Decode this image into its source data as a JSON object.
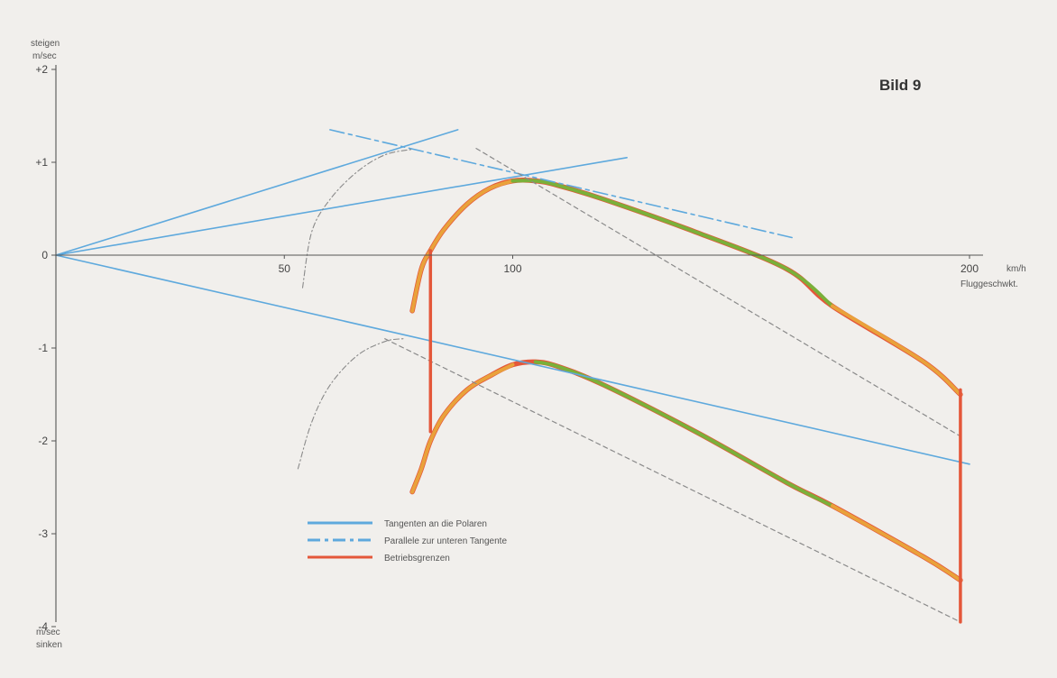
{
  "figure_label": "Bild 9",
  "y_axis": {
    "top_label_1": "steigen",
    "top_label_2": "m/sec",
    "bottom_label_1": "m/sec",
    "bottom_label_2": "sinken"
  },
  "x_axis": {
    "unit_label": "km/h",
    "name_label": "Fluggeschwkt."
  },
  "legend": {
    "tangent_label": "Tangenten an die Polaren",
    "parallel_label": "Parallele zur unteren Tangente",
    "limits_label": "Betriebsgrenzen"
  },
  "colors": {
    "background": "#f1efec",
    "axis": "#555555",
    "tangent": "#5ea9dd",
    "limit": "#e4573a",
    "orange": "#e9a23b",
    "green": "#7ab03a",
    "dashed": "#8a8a8a"
  },
  "chart_data": {
    "type": "line",
    "xlim": [
      0,
      200
    ],
    "ylim": [
      -4,
      2
    ],
    "x_ticks": [
      {
        "value": 50,
        "label": "50"
      },
      {
        "value": 100,
        "label": "100"
      },
      {
        "value": 200,
        "label": "200"
      }
    ],
    "y_ticks": [
      {
        "value": 2,
        "label": "+2"
      },
      {
        "value": 1,
        "label": "+1"
      },
      {
        "value": 0,
        "label": "0"
      },
      {
        "value": -1,
        "label": "-1"
      },
      {
        "value": -2,
        "label": "-2"
      },
      {
        "value": -3,
        "label": "-3"
      },
      {
        "value": -4,
        "label": "-4"
      }
    ],
    "grid": false,
    "legend_position": "bottom-center",
    "series": [
      {
        "role": "upper-polar",
        "points": [
          [
            78,
            -0.6
          ],
          [
            80,
            -0.15
          ],
          [
            82,
            0.05
          ],
          [
            85,
            0.28
          ],
          [
            90,
            0.55
          ],
          [
            95,
            0.72
          ],
          [
            100,
            0.8
          ],
          [
            105,
            0.8
          ],
          [
            110,
            0.75
          ],
          [
            120,
            0.6
          ],
          [
            140,
            0.25
          ],
          [
            160,
            -0.15
          ],
          [
            170,
            -0.55
          ],
          [
            190,
            -1.15
          ],
          [
            198,
            -1.5
          ]
        ],
        "segments": [
          {
            "color": "orange",
            "x_range": [
              78,
              100
            ]
          },
          {
            "color": "green",
            "x_range": [
              100,
              170
            ]
          },
          {
            "color": "orange",
            "x_range": [
              170,
              198
            ]
          }
        ]
      },
      {
        "role": "lower-polar",
        "points": [
          [
            78,
            -2.55
          ],
          [
            80,
            -2.3
          ],
          [
            82,
            -2.0
          ],
          [
            85,
            -1.72
          ],
          [
            90,
            -1.45
          ],
          [
            95,
            -1.3
          ],
          [
            100,
            -1.18
          ],
          [
            105,
            -1.15
          ],
          [
            110,
            -1.2
          ],
          [
            120,
            -1.4
          ],
          [
            140,
            -1.9
          ],
          [
            160,
            -2.45
          ],
          [
            170,
            -2.7
          ],
          [
            190,
            -3.25
          ],
          [
            198,
            -3.5
          ]
        ],
        "segments": [
          {
            "color": "orange",
            "x_range": [
              78,
              100
            ]
          },
          {
            "color": "green",
            "x_range": [
              105,
              170
            ]
          },
          {
            "color": "orange",
            "x_range": [
              170,
              198
            ]
          }
        ]
      },
      {
        "role": "tangent-upper-shallow",
        "style": "solid",
        "points": [
          [
            0,
            0
          ],
          [
            125,
            1.05
          ]
        ]
      },
      {
        "role": "tangent-upper-steep",
        "style": "solid",
        "points": [
          [
            0,
            0
          ],
          [
            88,
            1.35
          ]
        ]
      },
      {
        "role": "tangent-lower",
        "style": "solid",
        "points": [
          [
            0,
            0
          ],
          [
            200,
            -2.25
          ]
        ]
      },
      {
        "role": "parallel-lower-tangent",
        "style": "dash-dot",
        "points": [
          [
            60,
            1.35
          ],
          [
            162,
            0.18
          ]
        ]
      },
      {
        "role": "dashed-upper",
        "style": "dashed",
        "points": [
          [
            92,
            1.15
          ],
          [
            198,
            -1.95
          ]
        ]
      },
      {
        "role": "dashed-lower",
        "style": "dashed",
        "points": [
          [
            72,
            -0.9
          ],
          [
            198,
            -3.95
          ]
        ]
      },
      {
        "role": "dotted-curve-upper",
        "style": "dotted",
        "points": [
          [
            54,
            -0.35
          ],
          [
            56,
            0.25
          ],
          [
            60,
            0.6
          ],
          [
            66,
            0.9
          ],
          [
            72,
            1.08
          ],
          [
            78,
            1.14
          ]
        ]
      },
      {
        "role": "dotted-curve-lower",
        "style": "dotted",
        "points": [
          [
            53,
            -2.3
          ],
          [
            56,
            -1.8
          ],
          [
            60,
            -1.4
          ],
          [
            66,
            -1.08
          ],
          [
            72,
            -0.93
          ],
          [
            76,
            -0.9
          ]
        ]
      },
      {
        "role": "limit-low-speed",
        "style": "solid",
        "points": [
          [
            82,
            0.05
          ],
          [
            82,
            -1.9
          ]
        ]
      },
      {
        "role": "limit-high-speed",
        "style": "solid",
        "points": [
          [
            198,
            -1.45
          ],
          [
            198,
            -3.95
          ]
        ]
      }
    ]
  }
}
